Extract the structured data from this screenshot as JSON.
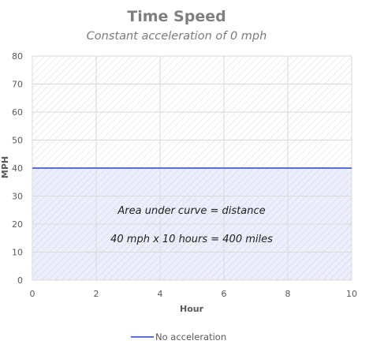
{
  "chart_data": {
    "type": "area",
    "title": "Time Speed",
    "subtitle": "Constant acceleration of 0 mph",
    "xlabel": "Hour",
    "ylabel": "MPH",
    "xlim": [
      0,
      10
    ],
    "ylim": [
      0,
      80
    ],
    "x_ticks": [
      0,
      2,
      4,
      6,
      8,
      10
    ],
    "y_ticks": [
      0,
      10,
      20,
      30,
      40,
      50,
      60,
      70,
      80
    ],
    "grid": true,
    "legend_position": "bottom",
    "series": [
      {
        "name": "No acceleration",
        "x": [
          0,
          10
        ],
        "y": [
          40,
          40
        ],
        "color": "#5b6fd6",
        "fill": "#eceefa"
      }
    ],
    "annotations": [
      "Area under curve = distance",
      "40 mph x 10 hours = 400 miles"
    ],
    "colors": {
      "upper_hatch": "#d9d9d9",
      "lower_hatch": "#c9cdee",
      "gridline": "#d9d9d9"
    }
  }
}
